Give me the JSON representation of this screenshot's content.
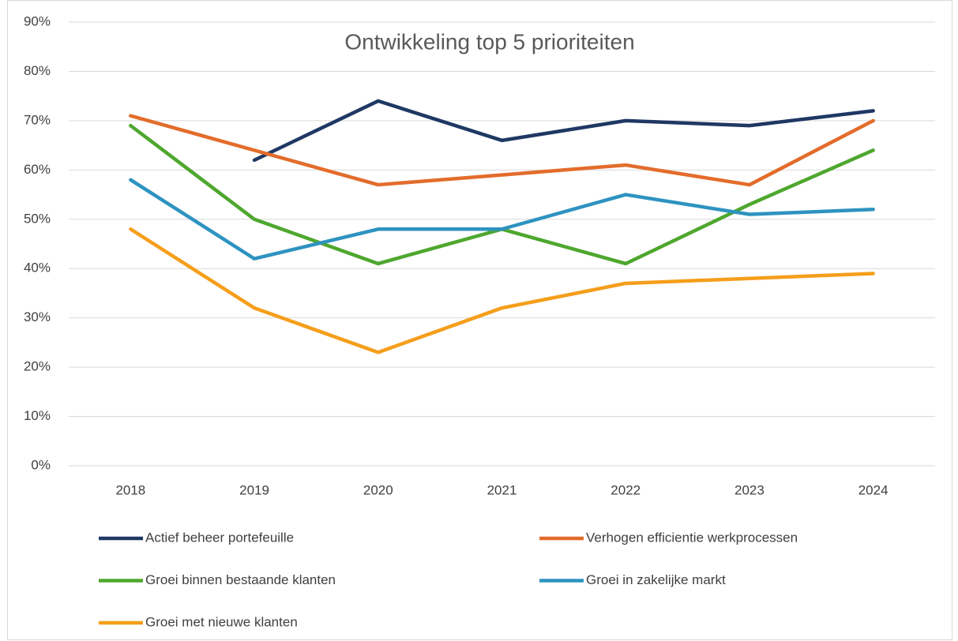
{
  "chart_data": {
    "type": "line",
    "title": "Ontwikkeling top 5 prioriteiten",
    "categories": [
      "2018",
      "2019",
      "2020",
      "2021",
      "2022",
      "2023",
      "2024"
    ],
    "series": [
      {
        "name": "Actief beheer portefeuille",
        "color": "#1f3864",
        "values": [
          null,
          62,
          74,
          66,
          70,
          69,
          72
        ]
      },
      {
        "name": "Verhogen efficientie werkprocessen",
        "color": "#e36c2b",
        "values": [
          71,
          64,
          57,
          59,
          61,
          57,
          70
        ]
      },
      {
        "name": "Groei binnen bestaande klanten",
        "color": "#4ea72e",
        "values": [
          69,
          50,
          41,
          48,
          41,
          53,
          64
        ]
      },
      {
        "name": "Groei in zakelijke markt",
        "color": "#2e93c0",
        "values": [
          58,
          42,
          48,
          48,
          55,
          51,
          52
        ]
      },
      {
        "name": "Groei met nieuwe klanten",
        "color": "#f59e1b",
        "values": [
          48,
          32,
          23,
          32,
          37,
          38,
          39
        ]
      }
    ],
    "ylim": [
      0,
      90
    ],
    "yticks": [
      {
        "value": 0,
        "label": "0%"
      },
      {
        "value": 10,
        "label": "10%"
      },
      {
        "value": 20,
        "label": "20%"
      },
      {
        "value": 30,
        "label": "30%"
      },
      {
        "value": 40,
        "label": "40%"
      },
      {
        "value": 50,
        "label": "50%"
      },
      {
        "value": 60,
        "label": "60%"
      },
      {
        "value": 70,
        "label": "70%"
      },
      {
        "value": 80,
        "label": "80%"
      },
      {
        "value": 90,
        "label": "90%"
      }
    ],
    "grid": true,
    "legend": "bottom"
  }
}
